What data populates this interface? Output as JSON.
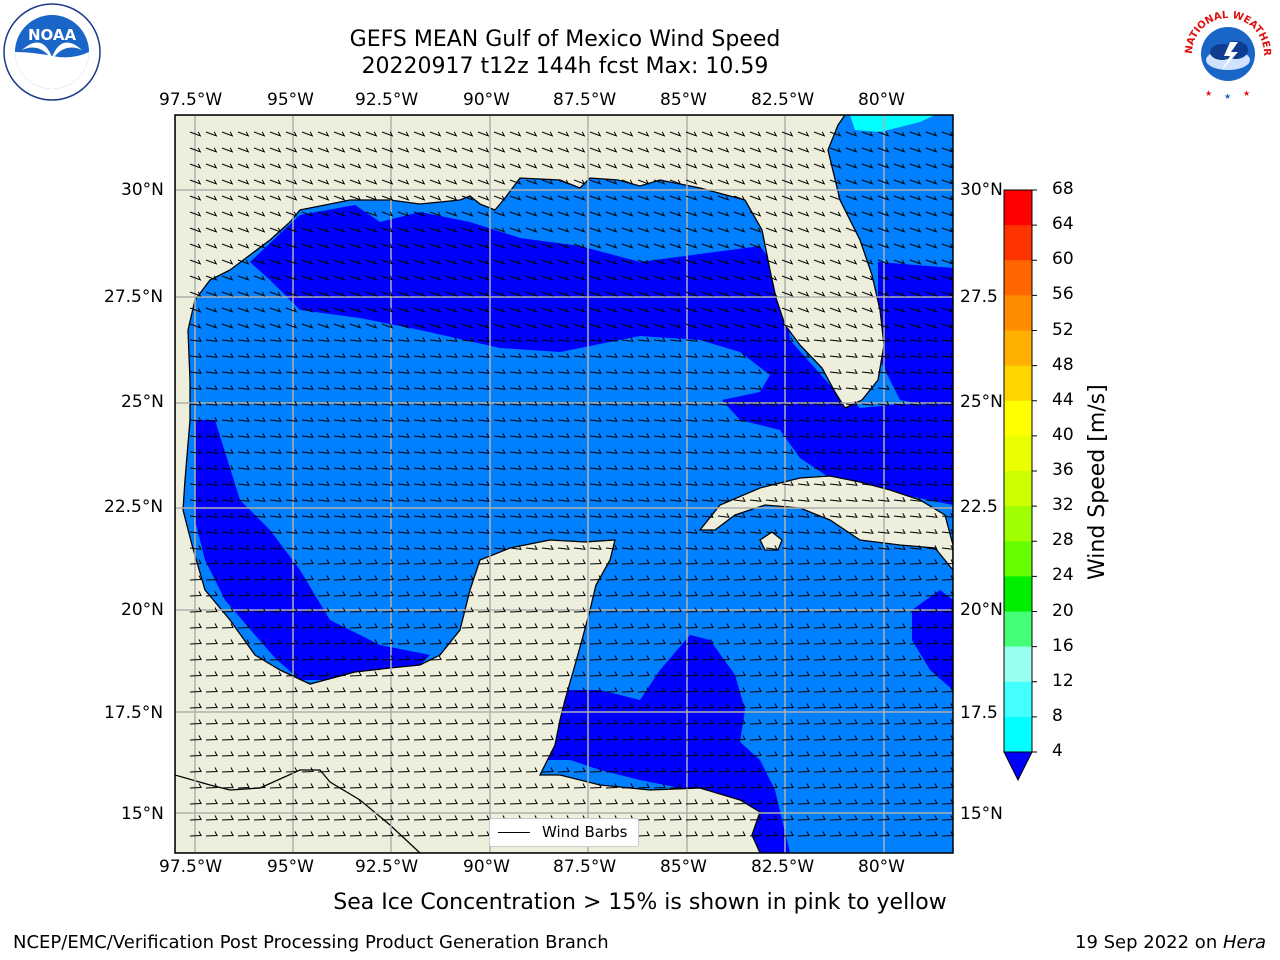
{
  "title_line1": "GEFS MEAN Gulf of Mexico Wind Speed",
  "title_line2": "20220917 t12z 144h fcst   Max: 10.59",
  "lon_labels": [
    "97.5°W",
    "95°W",
    "92.5°W",
    "90°W",
    "87.5°W",
    "85°W",
    "82.5°W",
    "80°W"
  ],
  "lat_labels": [
    "30°N",
    "27.5°N",
    "25°N",
    "22.5°N",
    "20°N",
    "17.5°N",
    "15°N"
  ],
  "lat_labels_right": [
    "30°N",
    "27.5",
    "25°N",
    "22.5",
    "20°N",
    "17.5",
    "15°N"
  ],
  "legend": {
    "label": "Wind Barbs"
  },
  "colorbar": {
    "title": "Wind Speed [m/s]",
    "ticks": [
      "68",
      "64",
      "60",
      "56",
      "52",
      "48",
      "44",
      "40",
      "36",
      "32",
      "28",
      "24",
      "20",
      "16",
      "12",
      "8",
      "4"
    ],
    "colors": [
      "#ff0000",
      "#ff3300",
      "#ff6600",
      "#ff8c00",
      "#ffb000",
      "#ffd500",
      "#ffff00",
      "#eaff00",
      "#ccff00",
      "#a0ff00",
      "#66ff00",
      "#00ee00",
      "#44ff77",
      "#99ffee",
      "#44ffff",
      "#00ffff",
      "#0080ff"
    ],
    "under_color": "#0000ff"
  },
  "colors": {
    "land": "#eeeedd",
    "band_4_8": "#0080ff",
    "band_under_4": "#0000ff",
    "band_8_12": "#00ffff",
    "grid": "#b0b0b0"
  },
  "sea_ice_note": "Sea Ice Concentration > 15% is shown in pink to yellow",
  "footer_left": "NCEP/EMC/Verification Post Processing Product Generation Branch",
  "footer_right_date": "19 Sep 2022 on ",
  "footer_right_host": "Hera",
  "logos": {
    "left": "noaa-logo",
    "right": "nws-logo"
  },
  "noaa_logo_text": "NOAA",
  "nws_logo_text": "NATIONAL WEATHER SERVICE"
}
